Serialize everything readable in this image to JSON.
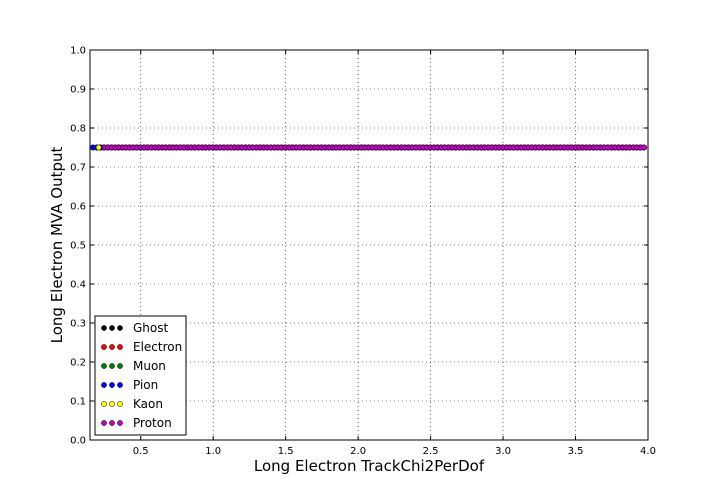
{
  "chart_data": {
    "type": "scatter",
    "title": "",
    "xlabel": "Long Electron TrackChi2PerDof",
    "ylabel": "Long Electron MVA Output",
    "xlim": [
      0.15,
      4.0
    ],
    "ylim": [
      0.0,
      1.0
    ],
    "x_ticks": [
      "0.5",
      "1.0",
      "1.5",
      "2.0",
      "2.5",
      "3.0",
      "3.5",
      "4.0"
    ],
    "y_ticks": [
      "0.0",
      "0.1",
      "0.2",
      "0.3",
      "0.4",
      "0.5",
      "0.6",
      "0.7",
      "0.8",
      "0.9",
      "1.0"
    ],
    "grid": true,
    "legend_position": "lower-left",
    "series": [
      {
        "name": "Ghost",
        "color": "#000000",
        "x_range": [
          0.17,
          3.98
        ],
        "y": 0.75
      },
      {
        "name": "Electron",
        "color": "#ff0000",
        "x_range": [
          0.2,
          3.97
        ],
        "y": 0.75
      },
      {
        "name": "Muon",
        "color": "#008000",
        "x_range": [
          0.2,
          3.97
        ],
        "y": 0.75
      },
      {
        "name": "Pion",
        "color": "#0000ff",
        "x_range": [
          0.17,
          3.98
        ],
        "y": 0.75
      },
      {
        "name": "Kaon",
        "color": "#ffff00",
        "x": [
          0.21,
          0.3,
          3.51,
          3.85,
          3.9,
          3.95
        ],
        "y": 0.75
      },
      {
        "name": "Proton",
        "color": "#bf00bf",
        "x_range": [
          0.25,
          3.98
        ],
        "y": 0.75
      }
    ]
  }
}
